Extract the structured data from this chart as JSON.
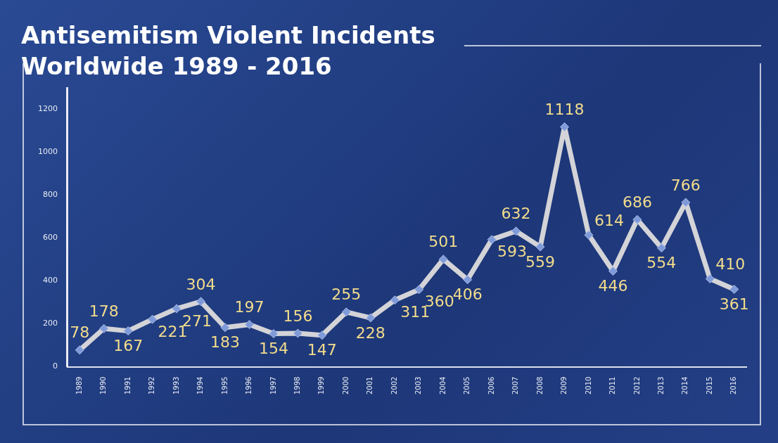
{
  "chart_data": {
    "type": "line",
    "title": "Antisemitism Violent Incidents Worldwide 1989 - 2016",
    "categories": [
      "1989",
      "1990",
      "1991",
      "1992",
      "1993",
      "1994",
      "1995",
      "1996",
      "1997",
      "1998",
      "1999",
      "2000",
      "2001",
      "2002",
      "2003",
      "2004",
      "2005",
      "2006",
      "2007",
      "2008",
      "2009",
      "2010",
      "2011",
      "2012",
      "2013",
      "2014",
      "2015",
      "2016"
    ],
    "series": [
      {
        "color": "#d4d4d8",
        "values": [
          78,
          178,
          167,
          221,
          271,
          304,
          183,
          197,
          154,
          156,
          147,
          255,
          228,
          311,
          360,
          501,
          406,
          593,
          632,
          559,
          1118,
          614,
          446,
          686,
          554,
          766,
          410,
          361
        ]
      }
    ],
    "ylim": [
      0,
      1300
    ],
    "yticks": [
      0,
      200,
      400,
      600,
      800,
      1000,
      1200
    ],
    "grid": false,
    "legend": false,
    "marker": "diamond",
    "line_style": "solid",
    "data_labels": true
  }
}
